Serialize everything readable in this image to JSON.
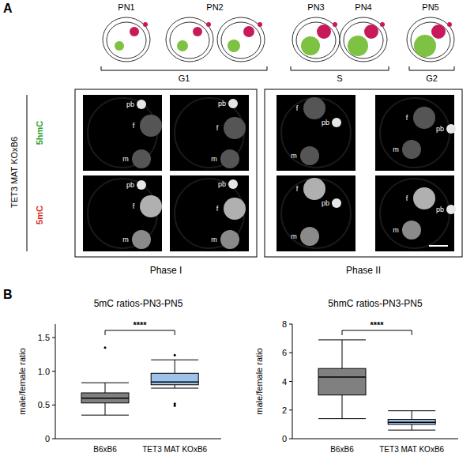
{
  "panels": [
    "A",
    "B"
  ],
  "stages": [
    "PN1",
    "PN2",
    "PN3",
    "PN4",
    "PN5"
  ],
  "cell_cycle": [
    "G1",
    "S",
    "G2"
  ],
  "genotype_label": "TET3 MAT KOxB6",
  "row_labels": [
    {
      "text": "5hmC",
      "color": "#2ca02c"
    },
    {
      "text": "5mC",
      "color": "#d62728"
    }
  ],
  "images": [
    [
      [
        "pb",
        "f",
        "m"
      ],
      [
        "pb",
        "f",
        "m"
      ],
      [
        "f",
        "pb",
        "m"
      ],
      [
        "f",
        "pb",
        "m"
      ]
    ],
    [
      [
        "pb",
        "f",
        "m"
      ],
      [
        "pb",
        "f",
        "m"
      ],
      [
        "f",
        "pb",
        "m"
      ],
      [
        "f",
        "pb",
        "m"
      ]
    ]
  ],
  "phases": [
    "Phase I",
    "Phase II"
  ],
  "chart_data": [
    {
      "type": "box",
      "title": "5mC ratios-PN3-PN5",
      "y_label": "male/female ratio",
      "categories": [
        "B6xB6",
        "TET3 MAT KOxB6"
      ],
      "colors": [
        "#808080",
        "#9dc3e8"
      ],
      "boxes": [
        {
          "min": 0.35,
          "q1": 0.53,
          "median": 0.6,
          "q3": 0.68,
          "max": 0.83,
          "outliers": [
            1.35
          ]
        },
        {
          "min": 0.75,
          "q1": 0.8,
          "median": 0.84,
          "q3": 0.97,
          "max": 1.17,
          "outliers": [
            1.24,
            0.52,
            0.49
          ]
        }
      ],
      "ylim": [
        0,
        1.7
      ],
      "yticks": [
        0,
        0.5,
        {
          "value": 1,
          "label": "1.0"
        },
        1.5
      ],
      "significance": "****"
    },
    {
      "type": "box",
      "title": "5hmC ratios-PN3-PN5",
      "y_label": "male/female ratio",
      "categories": [
        "B6xB6",
        "TET3 MAT KOxB6"
      ],
      "colors": [
        "#808080",
        "#9dc3e8"
      ],
      "boxes": [
        {
          "min": 1.4,
          "q1": 3.05,
          "median": 4.3,
          "q3": 4.9,
          "max": 6.9,
          "outliers": []
        },
        {
          "min": 0.6,
          "q1": 1.0,
          "median": 1.15,
          "q3": 1.35,
          "max": 1.95,
          "outliers": []
        }
      ],
      "ylim": [
        0,
        8
      ],
      "yticks": [
        0,
        2,
        4,
        6,
        8
      ],
      "significance": "****"
    }
  ]
}
